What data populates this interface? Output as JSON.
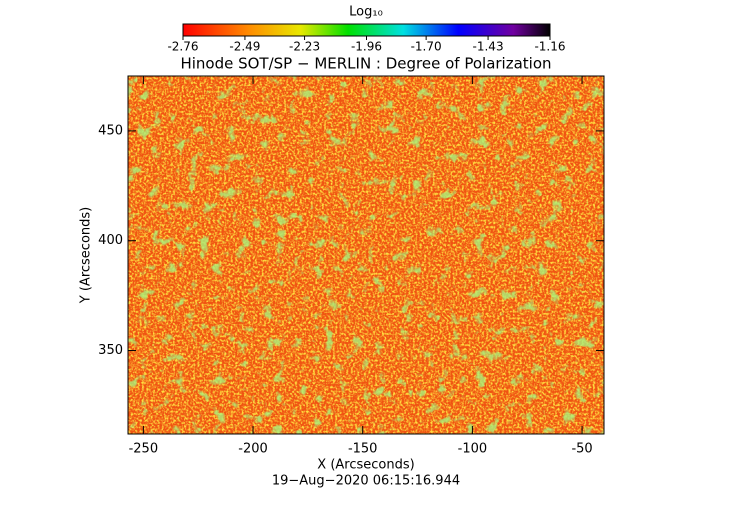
{
  "chart_data": {
    "type": "heatmap",
    "title": "Hinode SOT/SP − MERLIN : Degree of Polarization",
    "x_label": "X (Arcseconds)",
    "y_label": "Y (Arcseconds)",
    "footer": "19−Aug−2020 06:15:16.944",
    "xlim": [
      -257,
      -40
    ],
    "xticks": [
      -250,
      -200,
      -150,
      -100,
      -50
    ],
    "ylim": [
      312,
      475
    ],
    "yticks": [
      350,
      400,
      450
    ],
    "colorbar": {
      "label": "Log₁₀",
      "lim": [
        -2.76,
        -1.16
      ],
      "ticks": [
        -2.76,
        -2.49,
        -2.23,
        -1.96,
        {
          "value": -1.7,
          "label": "-1.70"
        },
        -1.43,
        -1.16
      ]
    }
  }
}
